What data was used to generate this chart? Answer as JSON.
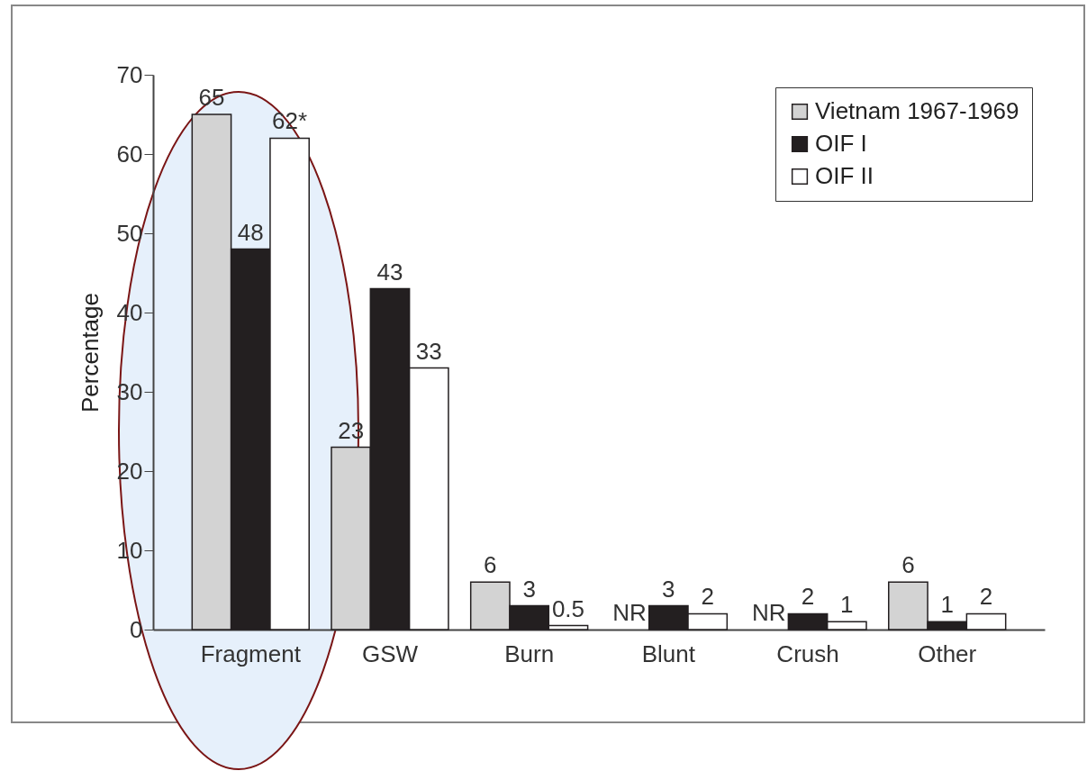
{
  "chart_data": {
    "type": "bar",
    "ylabel": "Percentage",
    "categories": [
      "Fragment",
      "GSW",
      "Burn",
      "Blunt",
      "Crush",
      "Other"
    ],
    "series": [
      {
        "name": "Vietnam 1967-1969",
        "color": "#d3d3d3",
        "values": [
          65,
          23,
          6,
          null,
          null,
          6
        ],
        "value_labels": [
          "65",
          "23",
          "6",
          "NR",
          "NR",
          "6"
        ]
      },
      {
        "name": "OIF I",
        "color": "#231f20",
        "values": [
          48,
          43,
          3,
          3,
          2,
          1
        ],
        "value_labels": [
          "48",
          "43",
          "3",
          "3",
          "2",
          "1"
        ]
      },
      {
        "name": "OIF II",
        "color": "#ffffff",
        "values": [
          62,
          33,
          0.5,
          2,
          1,
          2
        ],
        "value_labels": [
          "62*",
          "33",
          "0.5",
          "2",
          "1",
          "2"
        ]
      }
    ],
    "ylim": [
      0,
      70
    ],
    "yticks": [
      0,
      10,
      20,
      30,
      40,
      50,
      60,
      70
    ],
    "grid": false,
    "legend": "top right"
  }
}
